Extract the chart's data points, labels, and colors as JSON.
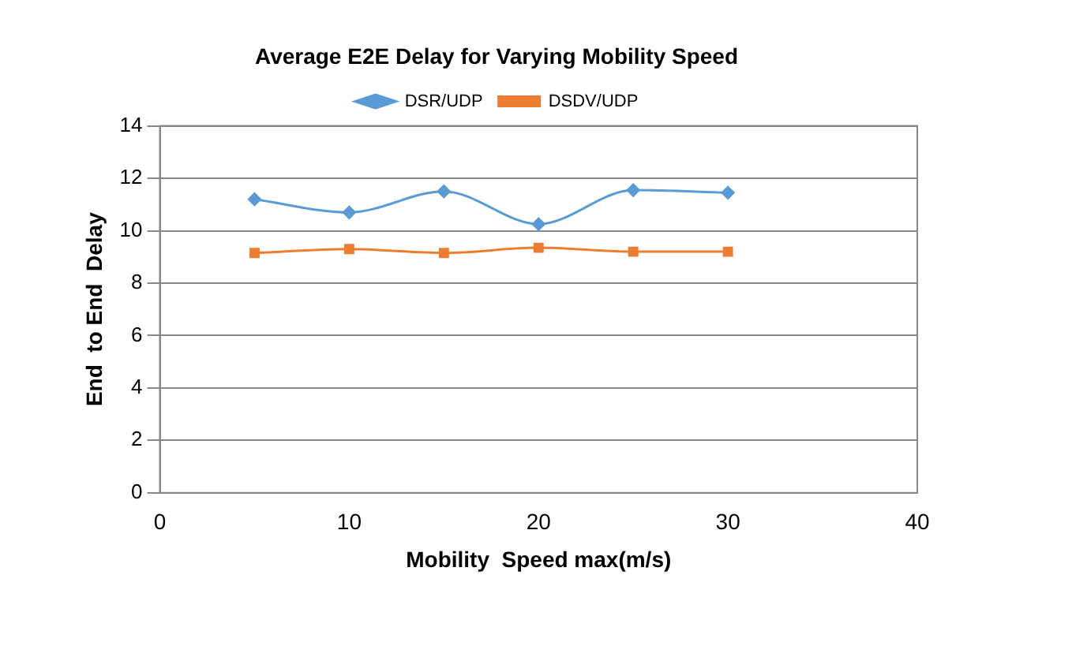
{
  "chart_data": {
    "type": "line",
    "title": "Average E2E Delay for Varying Mobility Speed",
    "xlabel": "Mobility  Speed max(m/s)",
    "ylabel": "End  to End  Delay",
    "x": [
      5,
      10,
      15,
      20,
      25,
      30
    ],
    "series": [
      {
        "name": "DSR/UDP",
        "color": "#5b9bd5",
        "marker": "diamond",
        "values": [
          11.2,
          10.7,
          11.5,
          10.25,
          11.55,
          11.45
        ]
      },
      {
        "name": "DSDV/UDP",
        "color": "#ed7d31",
        "marker": "square",
        "values": [
          9.15,
          9.3,
          9.15,
          9.35,
          9.2,
          9.2
        ]
      }
    ],
    "xlim": [
      0,
      40
    ],
    "xticks": [
      0,
      10,
      20,
      30,
      40
    ],
    "ylim": [
      0,
      14
    ],
    "yticks": [
      0,
      2,
      4,
      6,
      8,
      10,
      12,
      14
    ],
    "grid": "y",
    "legend": "top"
  }
}
